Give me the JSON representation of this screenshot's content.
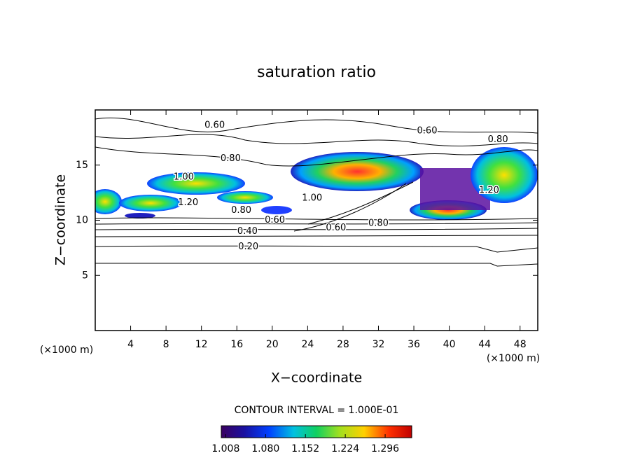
{
  "chart_data": {
    "type": "contour",
    "title": "saturation ratio",
    "x_label": "X−coordinate",
    "y_label": "Z−coordinate",
    "x_unit": "(×1000 m)",
    "y_unit": "(×1000 m)",
    "xlim": [
      0,
      50
    ],
    "xticks": [
      4,
      8,
      12,
      16,
      20,
      24,
      28,
      32,
      36,
      40,
      44,
      48
    ],
    "ylim": [
      0,
      20
    ],
    "yticks": [
      5,
      10,
      15
    ],
    "contour_interval_text": "CONTOUR INTERVAL = 1.000E-01",
    "contour_labels": [
      {
        "x": 13.5,
        "y": 18.6,
        "label": "0.60"
      },
      {
        "x": 37.5,
        "y": 18.1,
        "label": "0.60"
      },
      {
        "x": 45.5,
        "y": 17.3,
        "label": "0.80"
      },
      {
        "x": 15.3,
        "y": 15.6,
        "label": "0.80"
      },
      {
        "x": 10,
        "y": 13.9,
        "label": "1.00"
      },
      {
        "x": 24.5,
        "y": 12.0,
        "label": "1.00"
      },
      {
        "x": 16.5,
        "y": 10.9,
        "label": "0.80"
      },
      {
        "x": 20.3,
        "y": 10.0,
        "label": "0.60"
      },
      {
        "x": 17.2,
        "y": 9.0,
        "label": "0.40"
      },
      {
        "x": 17.3,
        "y": 7.6,
        "label": "0.20"
      },
      {
        "x": 27.2,
        "y": 9.3,
        "label": "0.60"
      },
      {
        "x": 32,
        "y": 9.7,
        "label": "0.80"
      },
      {
        "x": 44.5,
        "y": 12.7,
        "label": "1.20"
      },
      {
        "x": 10.5,
        "y": 11.6,
        "label": "1.20"
      }
    ],
    "colorbar_lim": [
      1.0,
      1.344
    ],
    "colorbar_ticks": [
      1.008,
      {
        "value": 1.08,
        "label": "1.080"
      },
      1.152,
      1.224,
      1.296
    ]
  }
}
